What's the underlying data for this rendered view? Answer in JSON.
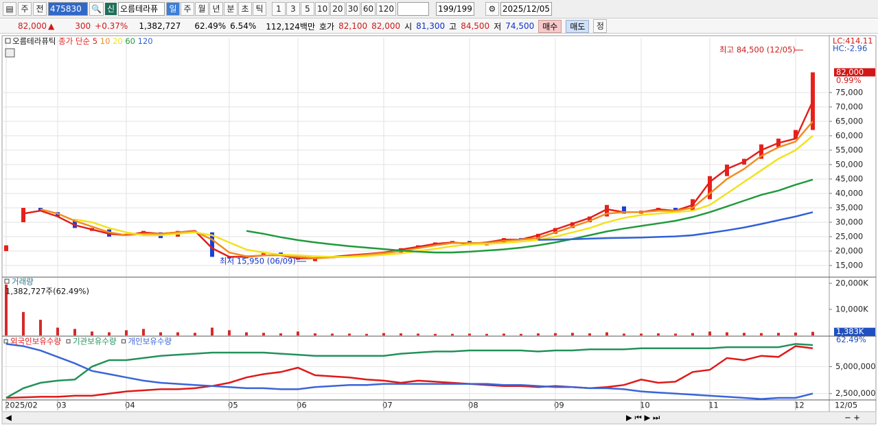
{
  "toolbar": {
    "market": "주",
    "prev": "전",
    "code": "475830",
    "badge": "신",
    "name": "오름테라퓨",
    "periods": [
      "일",
      "주",
      "월",
      "년",
      "분",
      "초",
      "틱"
    ],
    "intervals": [
      "1",
      "3",
      "5",
      "10",
      "20",
      "30",
      "60",
      "120"
    ],
    "count": "199/199",
    "date": "2025/12/05"
  },
  "quote": {
    "price": "82,000",
    "arrow": "▲",
    "change": "300",
    "change_pct": "+0.37%",
    "volume": "1,382,727",
    "volume_ratio": "62.49%",
    "turnover": "6.54%",
    "amount": "112,124백만",
    "ask_label": "호가",
    "ask": "82,100",
    "bid": "82,000",
    "open_label": "시",
    "open": "81,300",
    "high_label": "고",
    "high": "84,500",
    "low_label": "저",
    "low": "74,500",
    "buy": "매수",
    "sell": "매도",
    "settle": "정"
  },
  "chart_data": [
    {
      "type": "candlestick",
      "title": "오름테라퓨틱",
      "subtitle": "종가 단순",
      "categories": [
        "2025/02",
        null,
        null,
        "03",
        null,
        null,
        null,
        "04",
        null,
        null,
        null,
        null,
        null,
        "05",
        null,
        null,
        null,
        "06",
        null,
        null,
        null,
        null,
        "07",
        null,
        null,
        null,
        null,
        "08",
        null,
        null,
        null,
        null,
        "09",
        null,
        null,
        null,
        null,
        "10",
        null,
        null,
        null,
        "11",
        null,
        null,
        null,
        null,
        "12",
        null
      ],
      "x_end_label": "12/05",
      "open": [
        20000,
        30000,
        35000,
        33500,
        31000,
        27000,
        27500,
        25500,
        25500,
        26500,
        25000,
        27000,
        26500,
        18000,
        17500,
        18500,
        19500,
        18000,
        16500,
        17500,
        18000,
        18500,
        19000,
        19500,
        21000,
        22000,
        23000,
        23500,
        22000,
        23000,
        24500,
        24000,
        26000,
        28000,
        30000,
        32000,
        35500,
        33000,
        34000,
        35000,
        34000,
        38000,
        46000,
        50000,
        52000,
        56000,
        59000,
        62000
      ],
      "close": [
        22000,
        35000,
        34000,
        32000,
        28000,
        28000,
        25000,
        26000,
        27000,
        24500,
        27000,
        26500,
        18000,
        17500,
        18500,
        19500,
        18500,
        17000,
        17500,
        18000,
        18500,
        19000,
        19500,
        21000,
        22000,
        23000,
        23500,
        22000,
        23000,
        24500,
        24000,
        26000,
        28000,
        30000,
        32000,
        36000,
        33000,
        34000,
        35000,
        34000,
        38000,
        46000,
        50000,
        52000,
        57000,
        59000,
        62000,
        82000
      ],
      "up_color": "#e8201c",
      "down_color": "#1d3fd8",
      "series": [
        {
          "name": "5",
          "color": "#e0201c",
          "values": [
            null,
            33000,
            34000,
            32000,
            29000,
            27500,
            26000,
            25500,
            26500,
            26000,
            26500,
            27000,
            21000,
            18000,
            18000,
            18500,
            18500,
            17500,
            17500,
            18000,
            18500,
            19000,
            19500,
            20500,
            21500,
            22500,
            23000,
            22500,
            23000,
            24000,
            24000,
            25500,
            27500,
            29500,
            31500,
            34500,
            33500,
            33500,
            34500,
            34000,
            36000,
            44000,
            48500,
            51000,
            55000,
            57500,
            59000,
            72000
          ]
        },
        {
          "name": "10",
          "color": "#f08c1e",
          "values": [
            null,
            null,
            34500,
            33000,
            30500,
            28500,
            26500,
            25500,
            26000,
            26000,
            26500,
            26800,
            24000,
            19500,
            18200,
            18500,
            18500,
            18000,
            17500,
            17800,
            18200,
            18800,
            19300,
            20000,
            21000,
            22000,
            22800,
            22800,
            22800,
            23500,
            24000,
            24500,
            26500,
            28500,
            30500,
            33000,
            33500,
            33500,
            34000,
            34000,
            35000,
            40000,
            45000,
            48500,
            53000,
            56000,
            58000,
            65000
          ]
        },
        {
          "name": "20",
          "color": "#f2e21a",
          "values": [
            null,
            null,
            null,
            null,
            31000,
            30000,
            28000,
            26500,
            25500,
            25500,
            26000,
            26500,
            25500,
            23000,
            20500,
            19500,
            18800,
            18500,
            18200,
            18000,
            18000,
            18300,
            18700,
            19200,
            20000,
            20800,
            21700,
            22300,
            22500,
            22800,
            23300,
            23800,
            25000,
            26500,
            28000,
            30000,
            31500,
            32500,
            33000,
            33500,
            34000,
            36000,
            40000,
            44000,
            48000,
            52000,
            55000,
            60000
          ]
        },
        {
          "name": "60",
          "color": "#1f9a3c",
          "values": [
            null,
            null,
            null,
            null,
            null,
            null,
            null,
            null,
            null,
            null,
            null,
            null,
            null,
            null,
            27000,
            26000,
            24800,
            23800,
            23000,
            22300,
            21700,
            21200,
            20700,
            20200,
            19800,
            19500,
            19500,
            19800,
            20200,
            20600,
            21200,
            22000,
            23000,
            24200,
            25500,
            26800,
            27800,
            28700,
            29600,
            30500,
            31800,
            33500,
            35500,
            37500,
            39500,
            41000,
            43000,
            44800
          ]
        },
        {
          "name": "120",
          "color": "#3060d8",
          "values": [
            null,
            null,
            null,
            null,
            null,
            null,
            null,
            null,
            null,
            null,
            null,
            null,
            null,
            null,
            null,
            null,
            null,
            null,
            null,
            null,
            null,
            null,
            null,
            null,
            null,
            null,
            null,
            null,
            null,
            null,
            null,
            23900,
            24000,
            24100,
            24300,
            24500,
            24600,
            24700,
            24900,
            25100,
            25500,
            26300,
            27200,
            28200,
            29400,
            30700,
            32000,
            33500
          ]
        }
      ],
      "ylim": [
        11200,
        94000
      ],
      "yticks": [
        {
          "value": 15000,
          "label": "15,000"
        },
        {
          "value": 20000,
          "label": "20,000"
        },
        {
          "value": 25000,
          "label": "25,000"
        },
        {
          "value": 30000,
          "label": "30,000"
        },
        {
          "value": 35000,
          "label": "35,000"
        },
        {
          "value": 40000,
          "label": "40,000"
        },
        {
          "value": 45000,
          "label": "45,000"
        },
        {
          "value": 50000,
          "label": "50,000"
        },
        {
          "value": 55000,
          "label": "55,000"
        },
        {
          "value": 60000,
          "label": "60,000"
        },
        {
          "value": 65000,
          "label": "65,000"
        },
        {
          "value": 70000,
          "label": "70,000"
        },
        {
          "value": 75000,
          "label": "75,000"
        }
      ],
      "grid": true,
      "side_labels": [
        "LC:414.11",
        "HC:-2.96"
      ],
      "last_label": {
        "value": 82000,
        "label": "82,000"
      },
      "last_pct": "0.99%",
      "annotations": [
        "최고 84,500 (12/05)",
        "최저 15,950 (06/09)"
      ]
    },
    {
      "type": "bar",
      "title": "거래량",
      "subtitle": "1,382,727주(62.49%)",
      "values": [
        19500,
        9000,
        6000,
        3000,
        2500,
        1500,
        1200,
        2000,
        2500,
        1200,
        1200,
        1000,
        3000,
        2000,
        1200,
        1000,
        800,
        1500,
        800,
        700,
        700,
        600,
        900,
        800,
        700,
        600,
        600,
        700,
        600,
        700,
        600,
        800,
        900,
        1000,
        800,
        1200,
        700,
        700,
        800,
        700,
        900,
        1500,
        1200,
        1000,
        900,
        1000,
        1100,
        1383
      ],
      "color": "#d42a2a",
      "ylim": [
        0,
        22100
      ],
      "yticks": [
        {
          "value": 10000,
          "label": "10,000K"
        },
        {
          "value": 20000,
          "label": "20,000K"
        }
      ],
      "last_label": {
        "value": 1383,
        "label": "1,383K"
      },
      "last_pct": "62.49%"
    },
    {
      "type": "line",
      "series": [
        {
          "name": "외국인보유수량",
          "color": "#e01818",
          "values": [
            2100000,
            2150000,
            2200000,
            2200000,
            2300000,
            2300000,
            2500000,
            2700000,
            2800000,
            2900000,
            2900000,
            3000000,
            3200000,
            3500000,
            4000000,
            4300000,
            4500000,
            4900000,
            4200000,
            4100000,
            4000000,
            3800000,
            3700000,
            3500000,
            3700000,
            3600000,
            3500000,
            3400000,
            3300000,
            3200000,
            3200000,
            3100000,
            3200000,
            3100000,
            3000000,
            3100000,
            3300000,
            3800000,
            3500000,
            3600000,
            4500000,
            4700000,
            5800000,
            5600000,
            6000000,
            5900000,
            6900000,
            6700000
          ]
        },
        {
          "name": "기관보유수량",
          "color": "#22915a",
          "values": [
            2100000,
            3000000,
            3500000,
            3700000,
            3800000,
            5000000,
            5600000,
            5600000,
            5800000,
            6000000,
            6100000,
            6200000,
            6300000,
            6300000,
            6300000,
            6300000,
            6200000,
            6100000,
            6000000,
            6000000,
            6000000,
            6000000,
            6000000,
            6200000,
            6300000,
            6400000,
            6400000,
            6500000,
            6500000,
            6500000,
            6500000,
            6400000,
            6500000,
            6500000,
            6600000,
            6600000,
            6600000,
            6700000,
            6700000,
            6700000,
            6700000,
            6700000,
            6800000,
            6800000,
            6800000,
            6800000,
            7100000,
            7000000
          ]
        },
        {
          "name": "개인보유수량",
          "color": "#3a64d8",
          "values": [
            7100000,
            6900000,
            6500000,
            5900000,
            5300000,
            4600000,
            4300000,
            4000000,
            3700000,
            3500000,
            3400000,
            3300000,
            3200000,
            3100000,
            3000000,
            3000000,
            2900000,
            2900000,
            3100000,
            3200000,
            3300000,
            3300000,
            3400000,
            3400000,
            3400000,
            3400000,
            3400000,
            3400000,
            3400000,
            3300000,
            3300000,
            3200000,
            3100000,
            3100000,
            3000000,
            3000000,
            2900000,
            2700000,
            2600000,
            2500000,
            2400000,
            2300000,
            2200000,
            2100000,
            2000000,
            2100000,
            2100000,
            2500000
          ]
        }
      ],
      "ylim": [
        1974000,
        7763000
      ],
      "yticks": [
        {
          "value": 2500000,
          "label": "2,500,000"
        },
        {
          "value": 5000000,
          "label": "5,000,000"
        }
      ],
      "grid": true
    }
  ]
}
